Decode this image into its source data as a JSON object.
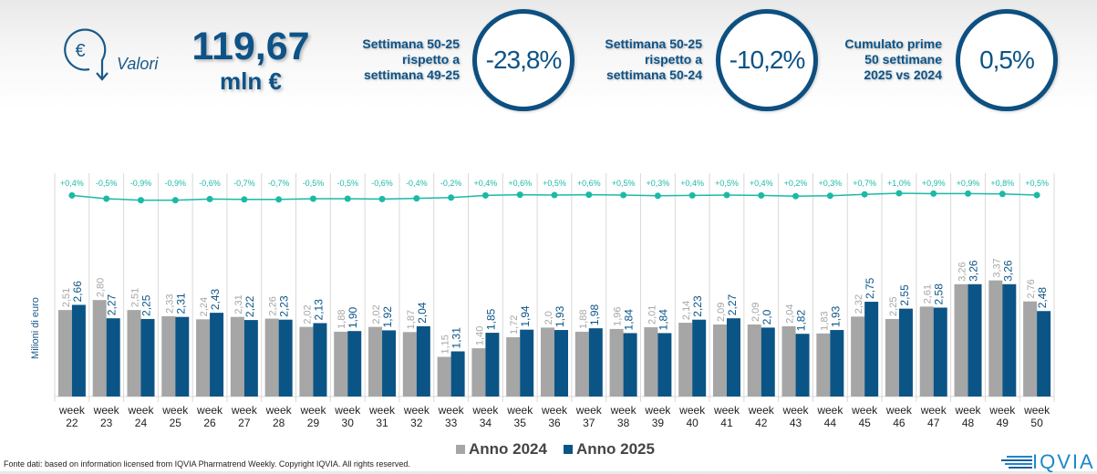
{
  "header": {
    "icon": "euro-down-arrow-icon",
    "valori_label": "Valori",
    "total_value": "119,67",
    "total_unit": "mln €",
    "kpis": [
      {
        "label_lines": [
          "Settimana 50-25",
          "rispetto a",
          "settimana 49-25"
        ],
        "value": "-23,8%"
      },
      {
        "label_lines": [
          "Settimana 50-25",
          "rispetto a",
          "settimana 50-24"
        ],
        "value": "-10,2%"
      },
      {
        "label_lines": [
          "Cumulato prime",
          "50 settimane",
          "2025 vs 2024"
        ],
        "value": "0,5%"
      }
    ]
  },
  "colors": {
    "series_2024": "#a6a6a6",
    "series_2025": "#0b5486",
    "line": "#1bbaa6",
    "accent": "#0d5387"
  },
  "chart_data": {
    "type": "bar",
    "title": "",
    "xlabel": "",
    "ylabel": "Milioni di euro",
    "categories": [
      "week 22",
      "week 23",
      "week 24",
      "week 25",
      "week 26",
      "week 27",
      "week 28",
      "week 29",
      "week 30",
      "week 31",
      "week 32",
      "week 33",
      "week 34",
      "week 35",
      "week 36",
      "week 37",
      "week 38",
      "week 39",
      "week 40",
      "week 41",
      "week 42",
      "week 43",
      "week 44",
      "week 45",
      "week 46",
      "week 47",
      "week 48",
      "week 49",
      "week 50"
    ],
    "series": [
      {
        "name": "Anno 2024",
        "values": [
          2.51,
          2.8,
          2.51,
          2.33,
          2.24,
          2.31,
          2.26,
          2.02,
          1.88,
          2.02,
          1.87,
          1.15,
          1.4,
          1.72,
          2.0,
          1.88,
          1.96,
          2.01,
          2.14,
          2.09,
          2.09,
          2.04,
          1.83,
          2.32,
          2.25,
          2.61,
          3.26,
          3.37,
          2.76
        ],
        "labels": [
          "2,51",
          "2,80",
          "2,51",
          "2,33",
          "2,24",
          "2,31",
          "2,26",
          "2,02",
          "1,88",
          "2,02",
          "1,87",
          "1,15",
          "1,40",
          "1,72",
          "2,0",
          "1,88",
          "1,96",
          "2,01",
          "2,14",
          "2,09",
          "2,09",
          "2,04",
          "1,83",
          "2,32",
          "2,25",
          "2,61",
          "3,26",
          "3,37",
          "2,76"
        ]
      },
      {
        "name": "Anno 2025",
        "values": [
          2.66,
          2.27,
          2.25,
          2.31,
          2.43,
          2.22,
          2.23,
          2.13,
          1.9,
          1.92,
          2.04,
          1.31,
          1.85,
          1.94,
          1.93,
          1.98,
          1.84,
          1.84,
          2.23,
          2.27,
          2.0,
          1.82,
          1.93,
          2.75,
          2.55,
          2.58,
          3.26,
          3.26,
          2.48
        ],
        "labels": [
          "2,66",
          "2,27",
          "2,25",
          "2,31",
          "2,43",
          "2,22",
          "2,23",
          "2,13",
          "1,90",
          "1,92",
          "2,04",
          "1,31",
          "1,85",
          "1,94",
          "1,93",
          "1,98",
          "1,84",
          "1,84",
          "2,23",
          "2,27",
          "2,0",
          "1,82",
          "1,93",
          "2,75",
          "2,55",
          "2,58",
          "3,26",
          "3,26",
          "2,48"
        ]
      }
    ],
    "cumulative_change": {
      "name": "Cumulato 2025 vs 2024",
      "values": [
        0.4,
        -0.5,
        -0.9,
        -0.9,
        -0.6,
        -0.7,
        -0.7,
        -0.5,
        -0.5,
        -0.6,
        -0.4,
        -0.2,
        0.4,
        0.6,
        0.5,
        0.6,
        0.5,
        0.3,
        0.4,
        0.5,
        0.4,
        0.2,
        0.3,
        0.7,
        1.0,
        0.9,
        0.9,
        0.8,
        0.5
      ],
      "labels": [
        "+0,4%",
        "-0,5%",
        "-0,9%",
        "-0,9%",
        "-0,6%",
        "-0,7%",
        "-0,7%",
        "-0,5%",
        "-0,5%",
        "-0,6%",
        "-0,4%",
        "-0,2%",
        "+0,4%",
        "+0,6%",
        "+0,5%",
        "+0,6%",
        "+0,5%",
        "+0,3%",
        "+0,4%",
        "+0,5%",
        "+0,4%",
        "+0,2%",
        "+0,3%",
        "+0,7%",
        "+1,0%",
        "+0,9%",
        "+0,9%",
        "+0,8%",
        "+0,5%"
      ]
    },
    "ylim": [
      0,
      3.5
    ],
    "grid": "vertical separators",
    "legend": "bottom-center"
  },
  "legend": {
    "items": [
      "Anno 2024",
      "Anno 2025"
    ]
  },
  "footer": {
    "source": "Fonte dati: based on information licensed from IQVIA Pharmatrend Weekly. Copyright IQVIA. All rights reserved.",
    "logo_text": "IQVIA"
  }
}
